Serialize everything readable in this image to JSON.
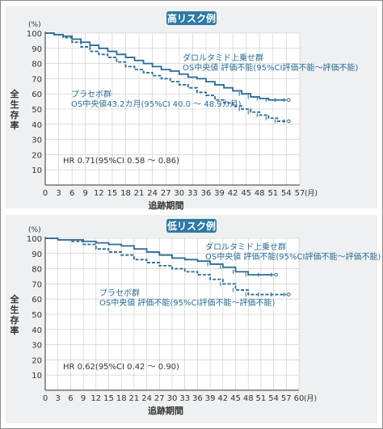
{
  "colors": {
    "curve": "#2b6c94",
    "title_bg": "#2f79a4",
    "title_text": "#ffffff",
    "annotation": "#2b6c94",
    "axis": "#333333",
    "grid": "#c8c8c8",
    "panel_bg": "#eef0f1"
  },
  "chart_data": [
    {
      "type": "line",
      "title": "高リスク例",
      "ylabel": "全生存率",
      "y_unit": "(%)",
      "xlabel": "追跡期間",
      "x_unit": "(月)",
      "xlim": [
        0,
        57
      ],
      "ylim": [
        0,
        100
      ],
      "x_ticks": [
        0,
        3,
        6,
        9,
        12,
        15,
        18,
        21,
        24,
        27,
        30,
        33,
        36,
        39,
        42,
        45,
        48,
        51,
        54,
        57
      ],
      "y_ticks": [
        10,
        20,
        30,
        40,
        50,
        60,
        70,
        80,
        90,
        100
      ],
      "grid": true,
      "annotations": {
        "series_a": [
          "ダロルタミド上乗せ群",
          "OS中央値 評価不能(95%CI評価不能～評価不能)"
        ],
        "series_b": [
          "プラセボ群",
          "OS中央値43.2カ月(95%CI 40.0 ～ 48.9カ月)"
        ],
        "hr": "HR 0.71(95%CI 0.58 ～ 0.86)"
      },
      "series": [
        {
          "style": "solid",
          "x": [
            0,
            2,
            4,
            6,
            8,
            10,
            12,
            14,
            16,
            18,
            20,
            22,
            24,
            26,
            28,
            30,
            32,
            34,
            36,
            38,
            40,
            42,
            44,
            46,
            48,
            50,
            52,
            54
          ],
          "y": [
            100,
            99,
            98,
            96,
            94,
            92,
            90,
            88,
            86,
            84,
            82,
            80,
            78,
            76,
            75,
            73,
            71,
            70,
            68,
            66,
            64,
            62,
            60,
            58,
            57,
            56,
            56,
            56
          ]
        },
        {
          "style": "dashed",
          "x": [
            0,
            2,
            4,
            6,
            8,
            10,
            12,
            14,
            16,
            18,
            20,
            22,
            24,
            26,
            28,
            30,
            32,
            34,
            36,
            38,
            40,
            42,
            44,
            46,
            48,
            50,
            52,
            54
          ],
          "y": [
            100,
            99,
            97,
            94,
            91,
            88,
            86,
            84,
            81,
            78,
            76,
            74,
            72,
            70,
            68,
            66,
            64,
            61,
            59,
            56,
            54,
            52,
            50,
            48,
            46,
            44,
            42,
            42
          ]
        }
      ]
    },
    {
      "type": "line",
      "title": "低リスク例",
      "ylabel": "全生存率",
      "y_unit": "(%)",
      "xlabel": "追跡期間",
      "x_unit": "(月)",
      "xlim": [
        0,
        60
      ],
      "ylim": [
        0,
        100
      ],
      "x_ticks": [
        0,
        3,
        6,
        9,
        12,
        15,
        18,
        21,
        24,
        27,
        30,
        33,
        36,
        39,
        42,
        45,
        48,
        51,
        54,
        57,
        60
      ],
      "y_ticks": [
        10,
        20,
        30,
        40,
        50,
        60,
        70,
        80,
        90,
        100
      ],
      "grid": true,
      "annotations": {
        "series_a": [
          "ダロルタミド上乗せ群",
          "OS中央値 評価不能(95%CI評価不能～評価不能)"
        ],
        "series_b": [
          "プラセボ群",
          "OS中央値 評価不能(95%CI評価不能～評価不能)"
        ],
        "hr": "HR 0.62(95%CI 0.42 ～ 0.90)"
      },
      "series": [
        {
          "style": "solid",
          "x": [
            0,
            3,
            6,
            9,
            12,
            15,
            18,
            21,
            24,
            27,
            30,
            33,
            36,
            39,
            42,
            45,
            48,
            51,
            54
          ],
          "y": [
            100,
            99,
            99,
            98,
            97,
            96,
            95,
            93,
            91,
            89,
            87,
            86,
            85,
            83,
            81,
            78,
            76,
            76,
            76
          ]
        },
        {
          "style": "dashed",
          "x": [
            0,
            3,
            6,
            9,
            12,
            15,
            18,
            21,
            24,
            27,
            30,
            33,
            36,
            39,
            42,
            45,
            48,
            51,
            54,
            57
          ],
          "y": [
            100,
            99,
            98,
            96,
            93,
            91,
            89,
            86,
            84,
            82,
            80,
            78,
            76,
            73,
            70,
            66,
            63,
            63,
            63,
            63
          ]
        }
      ]
    }
  ]
}
